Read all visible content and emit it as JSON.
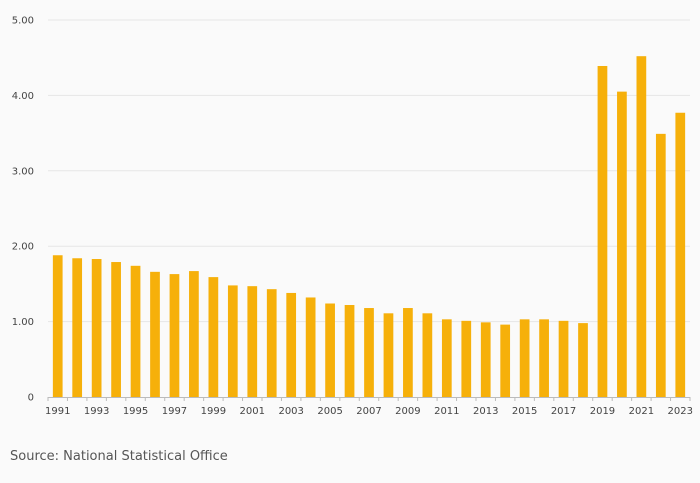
{
  "chart_data": {
    "type": "bar",
    "categories": [
      "1991",
      "1992",
      "1993",
      "1994",
      "1995",
      "1996",
      "1997",
      "1998",
      "1999",
      "2000",
      "2001",
      "2002",
      "2003",
      "2004",
      "2005",
      "2006",
      "2007",
      "2008",
      "2009",
      "2010",
      "2011",
      "2012",
      "2013",
      "2014",
      "2015",
      "2016",
      "2017",
      "2018",
      "2019",
      "2020",
      "2021",
      "2022",
      "2023"
    ],
    "values": [
      1.88,
      1.84,
      1.83,
      1.79,
      1.74,
      1.66,
      1.63,
      1.67,
      1.59,
      1.48,
      1.47,
      1.43,
      1.38,
      1.32,
      1.24,
      1.22,
      1.18,
      1.11,
      1.18,
      1.11,
      1.03,
      1.01,
      0.99,
      0.96,
      1.03,
      1.03,
      1.01,
      0.98,
      4.39,
      4.05,
      4.52,
      3.49,
      3.77
    ],
    "x_tick_labels": [
      "1991",
      "1993",
      "1995",
      "1997",
      "1999",
      "2001",
      "2003",
      "2005",
      "2007",
      "2009",
      "2011",
      "2013",
      "2015",
      "2017",
      "2019",
      "2021",
      "2023"
    ],
    "y_tick_labels": [
      "0",
      "1.00",
      "2.00",
      "3.00",
      "4.00",
      "5.00"
    ],
    "y_tick_values": [
      0,
      1,
      2,
      3,
      4,
      5
    ],
    "ylim": [
      0,
      5
    ],
    "grid": true,
    "bar_color": "#f6b00a",
    "title": "",
    "xlabel": "",
    "ylabel": ""
  },
  "source": "Source: National Statistical Office"
}
